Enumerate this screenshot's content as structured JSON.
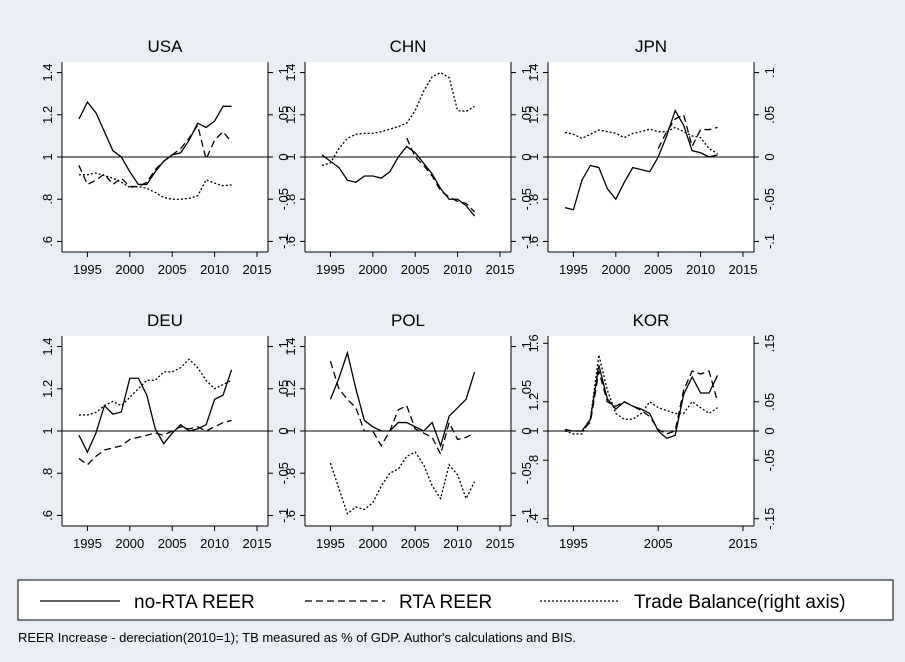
{
  "chart_data": [
    {
      "type": "line",
      "title": "USA",
      "x": [
        1994,
        1995,
        1996,
        1997,
        1998,
        1999,
        2000,
        2001,
        2002,
        2003,
        2004,
        2005,
        2006,
        2007,
        2008,
        2009,
        2010,
        2011,
        2012
      ],
      "xlim": [
        1992,
        2016.3
      ],
      "xticks": [
        1995,
        2000,
        2005,
        2010,
        2015
      ],
      "ylim": [
        0.55,
        1.45
      ],
      "yticks": [
        {
          "value": 0.6,
          "label": ".6"
        },
        {
          "value": 0.8,
          "label": ".8"
        },
        1,
        1.2,
        1.4
      ],
      "y2lim": [
        -0.1125,
        0.1125
      ],
      "y2ticks": [
        {
          "value": -0.1,
          "label": "-.1"
        },
        {
          "value": -0.05,
          "label": "-.05"
        },
        0,
        {
          "value": 0.05,
          "label": ".05"
        },
        {
          "value": 0.1,
          "label": ".1"
        }
      ],
      "yline": 1,
      "series": [
        {
          "name": "no-RTA REER",
          "color": "#000000",
          "dash": "solid",
          "values": [
            1.18,
            1.26,
            1.21,
            1.12,
            1.03,
            1.0,
            0.93,
            0.87,
            0.87,
            0.93,
            0.98,
            1.01,
            1.02,
            1.08,
            1.16,
            1.14,
            1.17,
            1.24,
            1.24
          ]
        },
        {
          "name": "RTA REER",
          "color": "#000000",
          "dash": "dash",
          "values": [
            0.96,
            0.87,
            0.89,
            0.92,
            0.87,
            0.9,
            0.86,
            0.86,
            0.88,
            0.94,
            0.98,
            1.01,
            1.04,
            1.09,
            1.15,
            0.99,
            1.08,
            1.12,
            1.07
          ]
        },
        {
          "name": "Trade Balance(right axis)",
          "color": "#000000",
          "dash": "dot",
          "axis": "y2",
          "values": [
            -0.021,
            -0.021,
            -0.019,
            -0.022,
            -0.025,
            -0.03,
            -0.036,
            -0.035,
            -0.037,
            -0.042,
            -0.048,
            -0.05,
            -0.05,
            -0.049,
            -0.046,
            -0.027,
            -0.031,
            -0.034,
            -0.033
          ]
        }
      ]
    },
    {
      "type": "line",
      "title": "CHN",
      "x": [
        1994,
        1995,
        1996,
        1997,
        1998,
        1999,
        2000,
        2001,
        2002,
        2003,
        2004,
        2005,
        2006,
        2007,
        2008,
        2009,
        2010,
        2011,
        2012
      ],
      "xlim": [
        1992,
        2016.3
      ],
      "xticks": [
        1995,
        2000,
        2005,
        2010,
        2015
      ],
      "ylim": [
        0.55,
        1.45
      ],
      "yticks": [
        {
          "value": 0.6,
          "label": ".6"
        },
        {
          "value": 0.8,
          "label": ".8"
        },
        1,
        1.2,
        1.4
      ],
      "y2lim": [
        -0.1125,
        0.1125
      ],
      "y2ticks": [
        {
          "value": -0.1,
          "label": "-.1"
        },
        {
          "value": -0.05,
          "label": "-.05"
        },
        0,
        {
          "value": 0.05,
          "label": ".05"
        },
        {
          "value": 0.1,
          "label": ".1"
        }
      ],
      "yline": 1,
      "series": [
        {
          "name": "no-RTA REER",
          "color": "#000000",
          "dash": "solid",
          "values": [
            1.01,
            0.98,
            0.95,
            0.89,
            0.88,
            0.91,
            0.91,
            0.9,
            0.93,
            1.0,
            1.05,
            1.02,
            0.97,
            0.92,
            0.85,
            0.8,
            0.8,
            0.77,
            0.72
          ]
        },
        {
          "name": "RTA REER",
          "color": "#000000",
          "dash": "dash",
          "values": [
            null,
            null,
            null,
            null,
            null,
            null,
            null,
            null,
            null,
            null,
            1.09,
            1.0,
            0.96,
            0.91,
            0.84,
            0.81,
            0.79,
            0.78,
            0.74
          ]
        },
        {
          "name": "Trade Balance(right axis)",
          "color": "#000000",
          "dash": "dot",
          "axis": "y2",
          "values": [
            -0.01,
            -0.007,
            0.01,
            0.022,
            0.027,
            0.028,
            0.028,
            0.03,
            0.033,
            0.036,
            0.04,
            0.055,
            0.078,
            0.095,
            0.1,
            0.094,
            0.055,
            0.054,
            0.06
          ]
        }
      ]
    },
    {
      "type": "line",
      "title": "JPN",
      "x": [
        1994,
        1995,
        1996,
        1997,
        1998,
        1999,
        2000,
        2001,
        2002,
        2003,
        2004,
        2005,
        2006,
        2007,
        2008,
        2009,
        2010,
        2011,
        2012
      ],
      "xlim": [
        1992,
        2016.3
      ],
      "xticks": [
        1995,
        2000,
        2005,
        2010,
        2015
      ],
      "ylim": [
        0.55,
        1.45
      ],
      "yticks": [
        {
          "value": 0.6,
          "label": ".6"
        },
        {
          "value": 0.8,
          "label": ".8"
        },
        1,
        1.2,
        1.4
      ],
      "y2lim": [
        -0.1125,
        0.1125
      ],
      "y2ticks": [
        {
          "value": -0.1,
          "label": "-.1"
        },
        {
          "value": -0.05,
          "label": "-.05"
        },
        0,
        {
          "value": 0.05,
          "label": ".05"
        },
        {
          "value": 0.1,
          "label": ".1"
        }
      ],
      "yline": 1,
      "series": [
        {
          "name": "no-RTA REER",
          "color": "#000000",
          "dash": "solid",
          "values": [
            0.76,
            0.75,
            0.89,
            0.96,
            0.95,
            0.85,
            0.8,
            0.88,
            0.95,
            0.94,
            0.93,
            1.0,
            1.1,
            1.22,
            1.15,
            1.03,
            1.02,
            1.0,
            1.01
          ]
        },
        {
          "name": "RTA REER",
          "color": "#000000",
          "dash": "dash",
          "values": [
            null,
            null,
            null,
            null,
            null,
            null,
            null,
            null,
            null,
            null,
            null,
            1.04,
            1.12,
            1.18,
            1.2,
            1.05,
            1.13,
            1.13,
            1.14
          ]
        },
        {
          "name": "Trade Balance(right axis)",
          "color": "#000000",
          "dash": "dot",
          "axis": "y2",
          "values": [
            0.029,
            0.027,
            0.022,
            0.027,
            0.032,
            0.03,
            0.028,
            0.023,
            0.028,
            0.03,
            0.033,
            0.03,
            0.03,
            0.035,
            0.03,
            0.025,
            0.023,
            0.01,
            0.004
          ]
        }
      ]
    },
    {
      "type": "line",
      "title": "DEU",
      "x": [
        1994,
        1995,
        1996,
        1997,
        1998,
        1999,
        2000,
        2001,
        2002,
        2003,
        2004,
        2005,
        2006,
        2007,
        2008,
        2009,
        2010,
        2011,
        2012
      ],
      "xlim": [
        1992,
        2016.3
      ],
      "xticks": [
        1995,
        2000,
        2005,
        2010,
        2015
      ],
      "ylim": [
        0.55,
        1.45
      ],
      "yticks": [
        {
          "value": 0.6,
          "label": ".6"
        },
        {
          "value": 0.8,
          "label": ".8"
        },
        1,
        1.2,
        1.4
      ],
      "y2lim": [
        -0.1125,
        0.1125
      ],
      "y2ticks": [
        {
          "value": -0.1,
          "label": "-.1"
        },
        {
          "value": -0.05,
          "label": "-.05"
        },
        0,
        {
          "value": 0.05,
          "label": ".05"
        },
        {
          "value": 0.1,
          "label": ".1"
        }
      ],
      "yline": 1,
      "series": [
        {
          "name": "no-RTA REER",
          "color": "#000000",
          "dash": "solid",
          "values": [
            0.98,
            0.9,
            0.99,
            1.12,
            1.08,
            1.09,
            1.25,
            1.25,
            1.17,
            1.01,
            0.94,
            0.99,
            1.03,
            1.0,
            1.01,
            1.03,
            1.15,
            1.17,
            1.29
          ]
        },
        {
          "name": "RTA REER",
          "color": "#000000",
          "dash": "dash",
          "values": [
            0.87,
            0.84,
            0.88,
            0.91,
            0.92,
            0.93,
            0.96,
            0.97,
            0.98,
            0.99,
            0.98,
            1.0,
            1.02,
            1.01,
            1.02,
            1.0,
            1.02,
            1.04,
            1.05
          ]
        },
        {
          "name": "Trade Balance(right axis)",
          "color": "#000000",
          "dash": "dot",
          "axis": "y2",
          "values": [
            0.019,
            0.019,
            0.022,
            0.03,
            0.035,
            0.03,
            0.04,
            0.05,
            0.06,
            0.06,
            0.07,
            0.07,
            0.075,
            0.085,
            0.075,
            0.06,
            0.05,
            0.055,
            0.06
          ]
        }
      ]
    },
    {
      "type": "line",
      "title": "POL",
      "x": [
        1994,
        1995,
        1996,
        1997,
        1998,
        1999,
        2000,
        2001,
        2002,
        2003,
        2004,
        2005,
        2006,
        2007,
        2008,
        2009,
        2010,
        2011,
        2012
      ],
      "xlim": [
        1992,
        2016.3
      ],
      "xticks": [
        1995,
        2000,
        2005,
        2010,
        2015
      ],
      "ylim": [
        0.55,
        1.45
      ],
      "yticks": [
        {
          "value": 0.6,
          "label": ".6"
        },
        {
          "value": 0.8,
          "label": ".8"
        },
        1,
        1.2,
        1.4
      ],
      "y2lim": [
        -0.1125,
        0.1125
      ],
      "y2ticks": [
        {
          "value": -0.1,
          "label": "-.1"
        },
        {
          "value": -0.05,
          "label": "-.05"
        },
        0,
        {
          "value": 0.05,
          "label": ".05"
        },
        {
          "value": 0.1,
          "label": ".1"
        }
      ],
      "yline": 1,
      "series": [
        {
          "name": "no-RTA REER",
          "color": "#000000",
          "dash": "solid",
          "values": [
            null,
            1.15,
            1.25,
            1.37,
            1.2,
            1.05,
            1.02,
            1.0,
            1.0,
            1.04,
            1.04,
            1.02,
            1.0,
            1.04,
            0.93,
            1.07,
            1.11,
            1.15,
            1.28
          ]
        },
        {
          "name": "RTA REER",
          "color": "#000000",
          "dash": "dash",
          "values": [
            null,
            1.33,
            1.2,
            1.15,
            1.11,
            1.0,
            1.0,
            0.93,
            1.0,
            1.1,
            1.12,
            1.01,
            0.99,
            0.97,
            0.89,
            1.04,
            0.96,
            0.97,
            0.99
          ]
        },
        {
          "name": "Trade Balance(right axis)",
          "color": "#000000",
          "dash": "dot",
          "axis": "y2",
          "values": [
            null,
            -0.038,
            -0.068,
            -0.098,
            -0.09,
            -0.093,
            -0.085,
            -0.065,
            -0.05,
            -0.045,
            -0.03,
            -0.025,
            -0.04,
            -0.065,
            -0.08,
            -0.04,
            -0.052,
            -0.08,
            -0.06
          ]
        }
      ]
    },
    {
      "type": "line",
      "title": "KOR",
      "x": [
        1994,
        1995,
        1996,
        1997,
        1998,
        1999,
        2000,
        2001,
        2002,
        2003,
        2004,
        2005,
        2006,
        2007,
        2008,
        2009,
        2010,
        2011,
        2012
      ],
      "xlim": [
        1992,
        2016.3
      ],
      "xticks": [
        1995,
        2005,
        2015
      ],
      "ylim": [
        0.35,
        1.65
      ],
      "yticks": [
        {
          "value": 0.4,
          "label": ".4"
        },
        {
          "value": 0.8,
          "label": ".8"
        },
        1,
        1.2,
        1.6
      ],
      "y2lim": [
        -0.1625,
        0.1625
      ],
      "y2ticks": [
        {
          "value": -0.15,
          "label": "-.15"
        },
        {
          "value": -0.05,
          "label": "-.05"
        },
        0,
        {
          "value": 0.05,
          "label": ".05"
        },
        {
          "value": 0.15,
          "label": ".15"
        }
      ],
      "yline": 1,
      "series": [
        {
          "name": "no-RTA REER",
          "color": "#000000",
          "dash": "solid",
          "values": [
            1.0,
            1.0,
            1.0,
            1.08,
            1.45,
            1.22,
            1.15,
            1.2,
            1.17,
            1.15,
            1.12,
            1.0,
            0.95,
            0.97,
            1.25,
            1.37,
            1.26,
            1.26,
            1.38
          ]
        },
        {
          "name": "RTA REER",
          "color": "#000000",
          "dash": "dash",
          "values": [
            1.01,
            1.0,
            1.0,
            1.06,
            1.41,
            1.2,
            1.17,
            1.2,
            1.17,
            1.14,
            1.1,
            1.01,
            0.98,
            1.0,
            1.28,
            1.41,
            1.39,
            1.41,
            1.2
          ]
        },
        {
          "name": "Trade Balance(right axis)",
          "color": "#000000",
          "dash": "dot",
          "axis": "y2",
          "values": [
            0.0,
            -0.005,
            -0.005,
            0.02,
            0.13,
            0.07,
            0.03,
            0.02,
            0.02,
            0.03,
            0.05,
            0.04,
            0.035,
            0.03,
            0.03,
            0.05,
            0.04,
            0.03,
            0.04
          ]
        }
      ]
    }
  ],
  "note": "REER Increase - dereciation(2010=1); TB measured as % of GDP. Author's calculations and BIS."
}
